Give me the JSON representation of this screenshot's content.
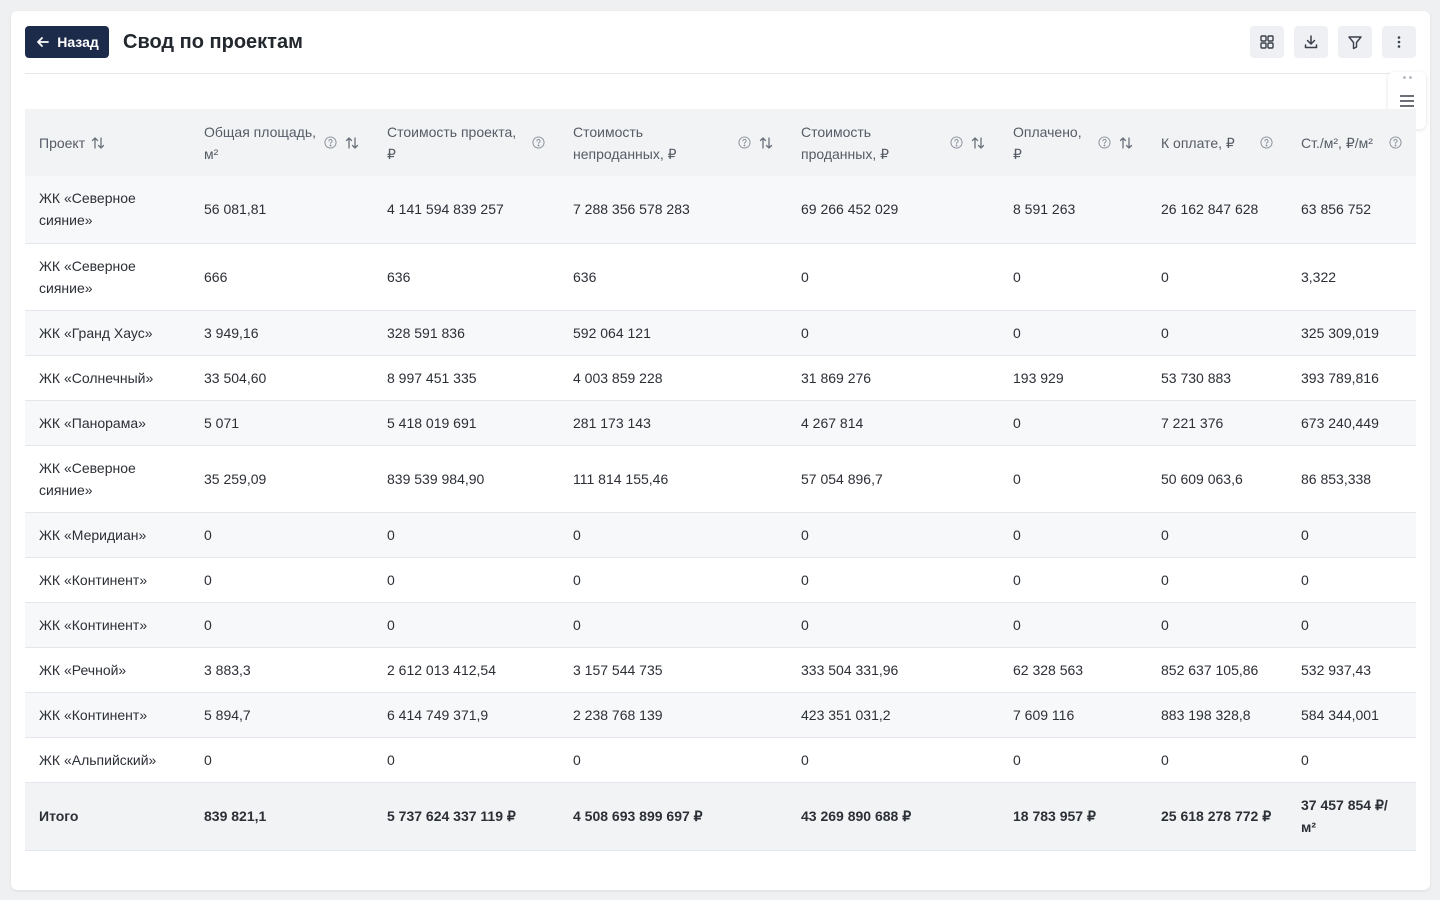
{
  "header": {
    "back_label": "Назад",
    "title": "Свод по проектам"
  },
  "toolbar": {
    "icons": [
      "grid-icon",
      "download-icon",
      "filter-icon",
      "more-vertical-icon"
    ]
  },
  "table": {
    "columns": [
      {
        "label": "Проект",
        "help": false,
        "sort": true
      },
      {
        "label": "Общая площадь, м²",
        "help": true,
        "sort": true
      },
      {
        "label": "Стоимость проекта, ₽",
        "help": true,
        "sort": false
      },
      {
        "label": "Стоимость непроданных, ₽",
        "help": true,
        "sort": true
      },
      {
        "label": "Стоимость проданных, ₽",
        "help": true,
        "sort": true
      },
      {
        "label": "Оплачено, ₽",
        "help": true,
        "sort": true
      },
      {
        "label": "К оплате, ₽",
        "help": true,
        "sort": false
      },
      {
        "label": "Ст./м², ₽/м²",
        "help": true,
        "sort": false
      }
    ],
    "rows": [
      [
        "ЖК «Северное сияние»",
        "56 081,81",
        "4 141 594 839 257",
        "7 288 356 578 283",
        "69 266 452 029",
        "8 591 263",
        "26 162 847 628",
        "63 856 752"
      ],
      [
        "ЖК «Северное сияние»",
        "666",
        "636",
        "636",
        "0",
        "0",
        "0",
        "3,322"
      ],
      [
        "ЖК «Гранд Хаус»",
        "3 949,16",
        "328 591 836",
        "592 064 121",
        "0",
        "0",
        "0",
        "325 309,019"
      ],
      [
        "ЖК «Солнечный»",
        "33 504,60",
        "8 997 451 335",
        "4 003 859 228",
        "31 869 276",
        "193 929",
        "53 730 883",
        "393 789,816"
      ],
      [
        "ЖК «Панорама»",
        "5 071",
        "5 418 019 691",
        "281 173 143",
        "4 267 814",
        "0",
        "7 221 376",
        "673 240,449"
      ],
      [
        "ЖК «Северное сияние»",
        "35 259,09",
        "839 539 984,90",
        "111 814 155,46",
        "57 054 896,7",
        "0",
        "50 609 063,6",
        "86 853,338"
      ],
      [
        "ЖК «Меридиан»",
        "0",
        "0",
        "0",
        "0",
        "0",
        "0",
        "0"
      ],
      [
        "ЖК «Континент»",
        "0",
        "0",
        "0",
        "0",
        "0",
        "0",
        "0"
      ],
      [
        "ЖК «Континент»",
        "0",
        "0",
        "0",
        "0",
        "0",
        "0",
        "0"
      ],
      [
        "ЖК «Речной»",
        "3 883,3",
        "2 612 013 412,54",
        "3 157 544 735",
        "333 504 331,96",
        "62 328 563",
        "852 637 105,86",
        "532 937,43"
      ],
      [
        "ЖК «Континент»",
        "5 894,7",
        "6 414 749 371,9",
        "2 238 768 139",
        "423 351 031,2",
        "7 609 116",
        "883 198 328,8",
        "584 344,001"
      ],
      [
        "ЖК «Альпийский»",
        "0",
        "0",
        "0",
        "0",
        "0",
        "0",
        "0"
      ]
    ],
    "total": [
      "Итого",
      "839 821,1",
      "5 737 624 337 119 ₽",
      "4 508 693 899 697 ₽",
      "43 269 890 688 ₽",
      "18 783 957 ₽",
      "25 618 278 772 ₽",
      "37 457 854 ₽/м²"
    ]
  }
}
